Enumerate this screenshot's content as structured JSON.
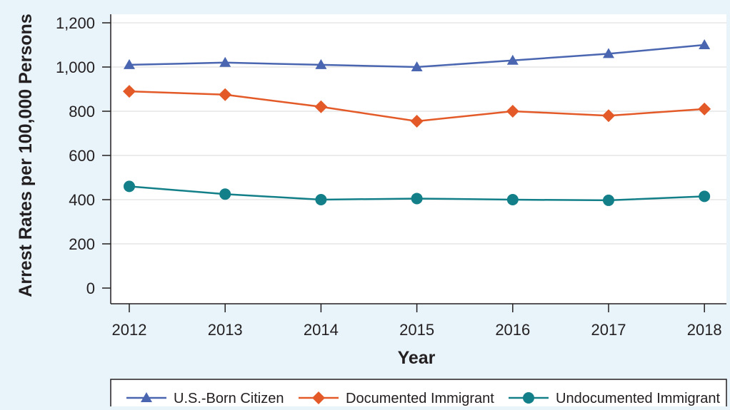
{
  "chart_data": {
    "type": "line",
    "xlabel": "Year",
    "ylabel": "Arrest Rates per 100,000 Persons",
    "x": [
      2012,
      2013,
      2014,
      2015,
      2016,
      2017,
      2018
    ],
    "x_tick_labels": [
      "2012",
      "2013",
      "2014",
      "2015",
      "2016",
      "2017",
      "2018"
    ],
    "ylim": [
      0,
      1200
    ],
    "y_ticks": [
      0,
      200,
      400,
      600,
      800,
      1000,
      1200
    ],
    "y_tick_labels": [
      "0",
      "200",
      "400",
      "600",
      "800",
      "1,000",
      "1,200"
    ],
    "grid": "horizontal",
    "legend_position": "bottom",
    "series": [
      {
        "name": "U.S.-Born Citizen",
        "values": [
          1010,
          1020,
          1010,
          1000,
          1030,
          1060,
          1100
        ],
        "color": "#4a66b0",
        "marker": "triangle"
      },
      {
        "name": "Documented Immigrant",
        "values": [
          890,
          875,
          820,
          755,
          800,
          780,
          810
        ],
        "color": "#e35a28",
        "marker": "diamond"
      },
      {
        "name": "Undocumented Immigrant",
        "values": [
          460,
          425,
          400,
          405,
          400,
          397,
          415
        ],
        "color": "#137f88",
        "marker": "circle"
      }
    ]
  }
}
